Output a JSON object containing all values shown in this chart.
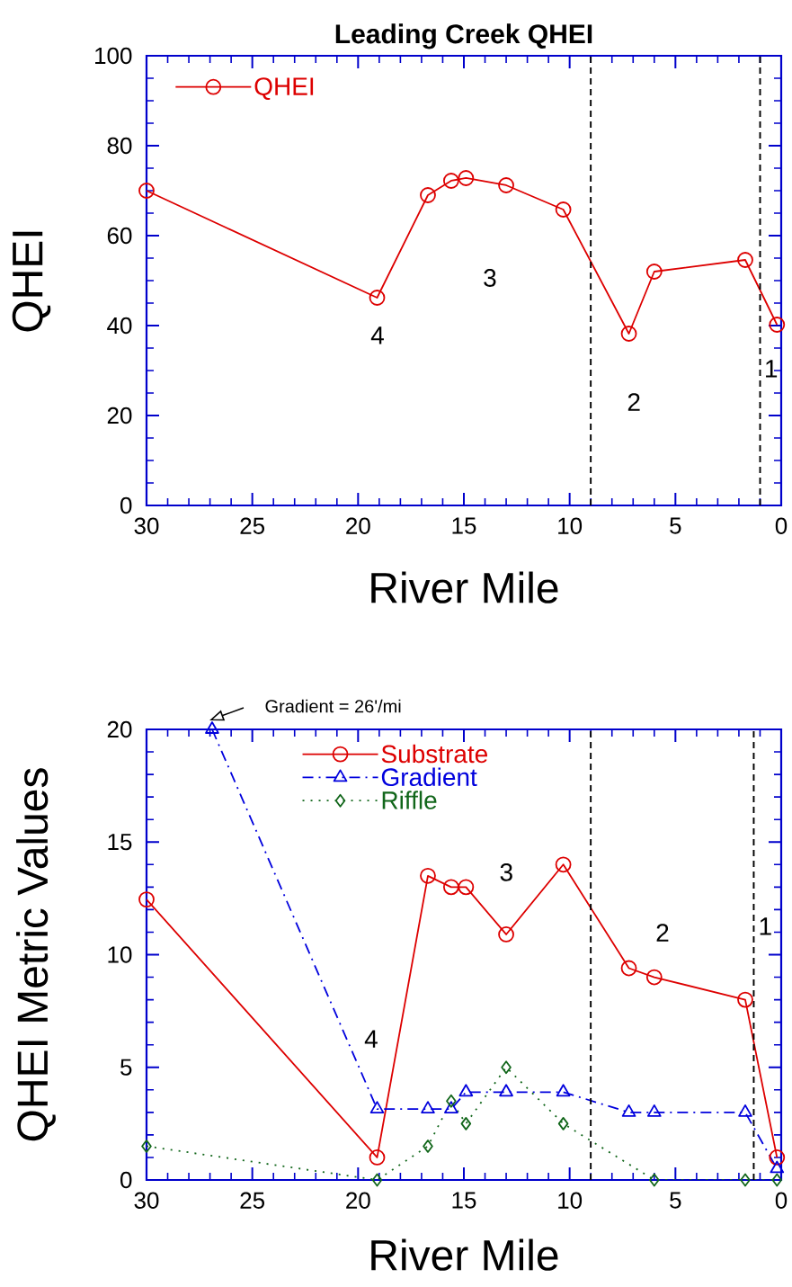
{
  "chart_data": [
    {
      "type": "line",
      "title": "Leading Creek QHEI",
      "xlabel": "River Mile",
      "ylabel": "QHEI",
      "x": [
        30,
        19.1,
        16.7,
        15.6,
        14.9,
        13.0,
        10.3,
        7.2,
        6.0,
        1.7,
        0.2
      ],
      "series": [
        {
          "name": "QHEI",
          "color": "#dd0000",
          "marker": "circle",
          "line_style": "solid",
          "values": [
            70,
            46.2,
            69,
            72.2,
            72.8,
            71.2,
            65.8,
            38.2,
            52,
            54.6,
            40.2
          ]
        }
      ],
      "xlim": [
        30,
        0
      ],
      "xticks": [
        30,
        25,
        20,
        15,
        10,
        5,
        0
      ],
      "ylim": [
        0,
        100
      ],
      "yticks": [
        0,
        20,
        40,
        60,
        80,
        100
      ],
      "legend": "top left",
      "ref_lines": [
        {
          "axis": "x",
          "value": 9,
          "color": "#000000",
          "line_style": "dashed"
        },
        {
          "axis": "x",
          "value": 1.0,
          "color": "#000000",
          "line_style": "dashed"
        }
      ],
      "annotations": [
        "4",
        "3",
        "2",
        "1"
      ]
    },
    {
      "type": "line",
      "xlabel": "River Mile",
      "ylabel": "QHEI Metric Values",
      "x": [
        30,
        19.1,
        16.7,
        15.6,
        14.9,
        13.0,
        10.3,
        7.2,
        6.0,
        1.7,
        0.2
      ],
      "series": [
        {
          "name": "Substrate",
          "color": "#dd0000",
          "marker": "circle",
          "line_style": "solid",
          "values": [
            12.45,
            1,
            13.5,
            13,
            13,
            10.9,
            14,
            9.4,
            9.0,
            8,
            1
          ]
        },
        {
          "name": "Gradient",
          "color": "#0000dd",
          "marker": "triangle",
          "line_style": "dashed",
          "x": [
            26.9,
            19.1,
            16.7,
            15.6,
            14.9,
            13.0,
            10.3,
            7.2,
            6.0,
            1.7,
            0.2
          ],
          "values": [
            20,
            3.15,
            3.15,
            3.15,
            3.9,
            3.9,
            3.9,
            3.0,
            3.0,
            3.0,
            0.5
          ]
        },
        {
          "name": "Riffle",
          "color": "#11661a",
          "marker": "diamond",
          "line_style": "dotted",
          "x": [
            30,
            19.1,
            16.7,
            15.6,
            14.9,
            13.0,
            10.3,
            6.0,
            1.7,
            0.2
          ],
          "values": [
            1.5,
            0,
            1.5,
            3.5,
            2.5,
            5,
            2.5,
            0,
            0,
            0
          ]
        }
      ],
      "xlim": [
        30,
        0
      ],
      "xticks": [
        30,
        25,
        20,
        15,
        10,
        5,
        0
      ],
      "ylim": [
        0,
        20
      ],
      "yticks": [
        0,
        5,
        10,
        15,
        20
      ],
      "legend": "top",
      "ref_lines": [
        {
          "axis": "x",
          "value": 9,
          "color": "#000000",
          "line_style": "dashed"
        },
        {
          "axis": "x",
          "value": 1.3,
          "color": "#000000",
          "line_style": "dashed"
        }
      ],
      "annotations": [
        "Gradient = 26'/mi",
        "4",
        "3",
        "2",
        "1"
      ]
    }
  ]
}
